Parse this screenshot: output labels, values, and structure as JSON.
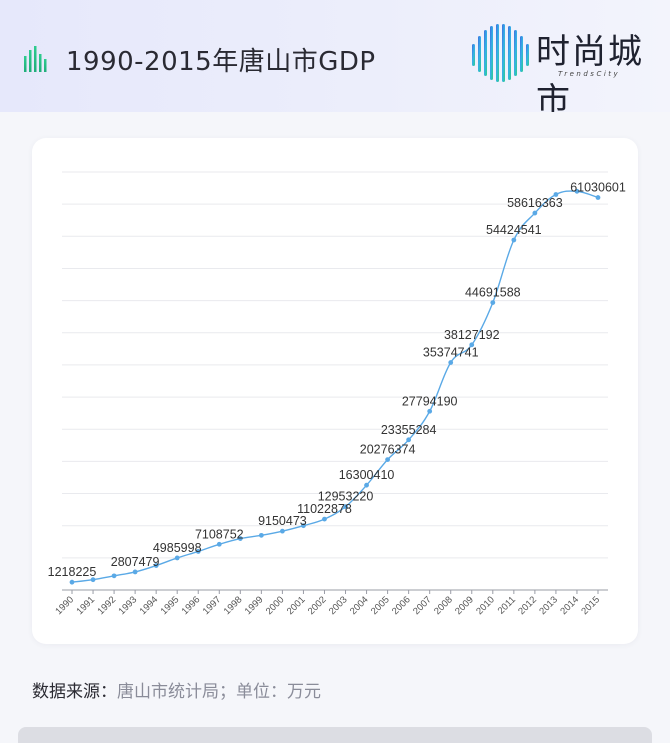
{
  "header": {
    "title": "1990-2015年唐山市GDP",
    "title_icon": "bar-chart-icon",
    "logo_cn": "时尚城市",
    "logo_en": "TrendsCity"
  },
  "footer": {
    "source_label": "数据来源：",
    "source_value": "唐山市统计局；单位：万元"
  },
  "colors": {
    "line": "#5aa9e6",
    "accent_green": "#2ecc8f",
    "accent_blue": "#3b6fe0"
  },
  "chart_data": {
    "type": "line",
    "title": "",
    "xlabel": "",
    "ylabel": "",
    "grid": true,
    "ylim": [
      0,
      65000000
    ],
    "categories": [
      "1990",
      "1991",
      "1992",
      "1993",
      "1994",
      "1995",
      "1996",
      "1997",
      "1998",
      "1999",
      "2000",
      "2001",
      "2002",
      "2003",
      "2004",
      "2005",
      "2006",
      "2007",
      "2008",
      "2009",
      "2010",
      "2011",
      "2012",
      "2013",
      "2014",
      "2015"
    ],
    "values": [
      1218225,
      1600000,
      2200000,
      2807479,
      3800000,
      4985998,
      6000000,
      7108752,
      8000000,
      8500000,
      9150473,
      10000000,
      11022878,
      12953220,
      16300410,
      20276374,
      23355284,
      27794190,
      35374741,
      38127192,
      44691588,
      54424541,
      58616363,
      61500000,
      62000000,
      61030601
    ],
    "data_labels": [
      {
        "index": 0,
        "text": "1218225"
      },
      {
        "index": 3,
        "text": "2807479"
      },
      {
        "index": 5,
        "text": "4985998"
      },
      {
        "index": 7,
        "text": "7108752"
      },
      {
        "index": 10,
        "text": "9150473"
      },
      {
        "index": 12,
        "text": "11022878"
      },
      {
        "index": 13,
        "text": "12953220"
      },
      {
        "index": 14,
        "text": "16300410"
      },
      {
        "index": 15,
        "text": "20276374"
      },
      {
        "index": 16,
        "text": "23355284"
      },
      {
        "index": 17,
        "text": "27794190"
      },
      {
        "index": 18,
        "text": "35374741"
      },
      {
        "index": 19,
        "text": "38127192"
      },
      {
        "index": 20,
        "text": "44691588"
      },
      {
        "index": 21,
        "text": "54424541"
      },
      {
        "index": 22,
        "text": "58616363"
      },
      {
        "index": 25,
        "text": "61030601"
      }
    ]
  }
}
